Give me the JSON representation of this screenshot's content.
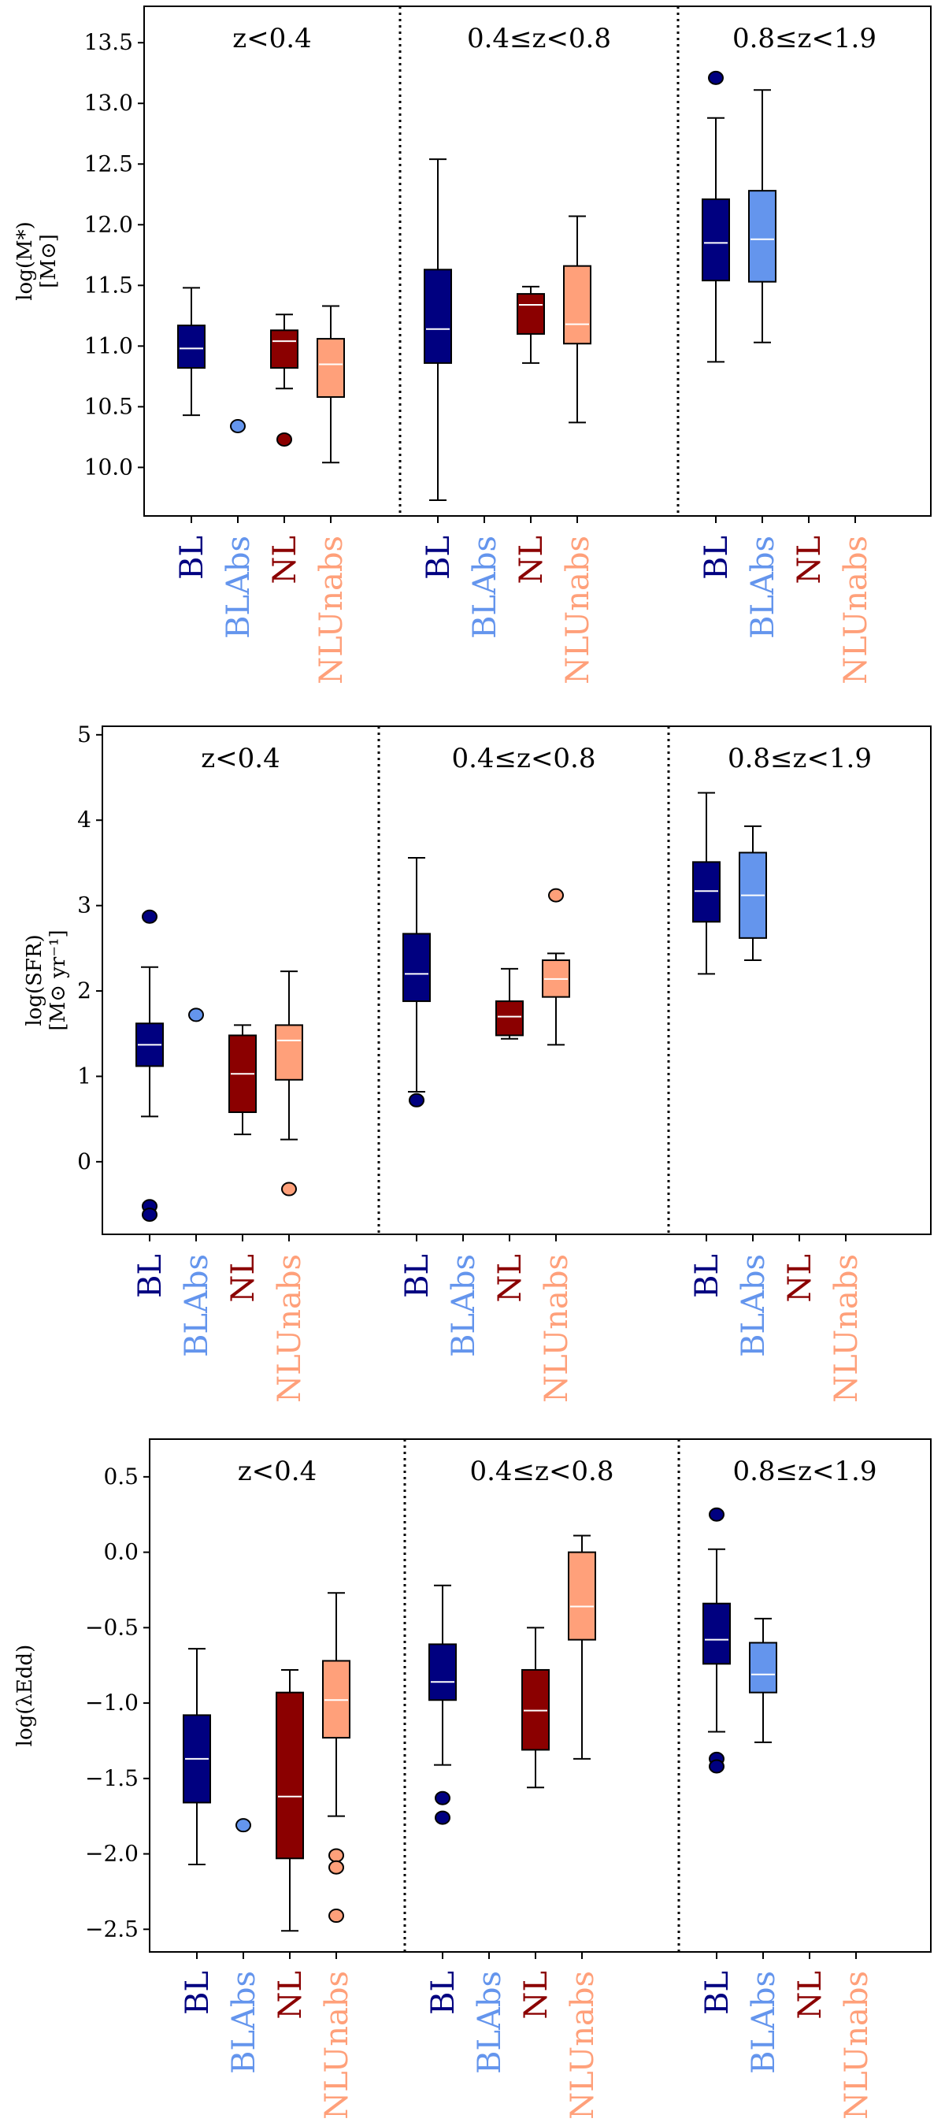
{
  "colors": {
    "BL": "#000080",
    "BLAbs": "#6495ED",
    "NL": "#8B0000",
    "NLUnabs": "#FFA07A"
  },
  "chart_data": [
    {
      "type": "box",
      "ylabel_line1": "log(M*)",
      "ylabel_line2": "[M⊙]",
      "ylim": [
        9.6,
        13.8
      ],
      "yticks": [
        10.0,
        10.5,
        11.0,
        11.5,
        12.0,
        12.5,
        13.0,
        13.5
      ],
      "ytick_labels": [
        "10.0",
        "10.5",
        "11.0",
        "11.5",
        "12.0",
        "12.5",
        "13.0",
        "13.5"
      ],
      "grid": false,
      "panels": [
        {
          "label": "z<0.4",
          "boxes": [
            {
              "category": "BL",
              "whislo": 10.43,
              "q1": 10.82,
              "med": 10.98,
              "q3": 11.17,
              "whishi": 11.48,
              "fliers": []
            },
            {
              "category": "BLAbs",
              "whislo": null,
              "q1": null,
              "med": null,
              "q3": null,
              "whishi": null,
              "fliers": [
                10.34
              ]
            },
            {
              "category": "NL",
              "whislo": 10.65,
              "q1": 10.82,
              "med": 11.04,
              "q3": 11.13,
              "whishi": 11.26,
              "fliers": [
                10.23
              ]
            },
            {
              "category": "NLUnabs",
              "whislo": 10.04,
              "q1": 10.58,
              "med": 10.85,
              "q3": 11.06,
              "whishi": 11.33,
              "fliers": []
            }
          ]
        },
        {
          "label": "0.4≤z<0.8",
          "boxes": [
            {
              "category": "BL",
              "whislo": 9.73,
              "q1": 10.86,
              "med": 11.14,
              "q3": 11.63,
              "whishi": 12.54,
              "fliers": []
            },
            {
              "category": "BLAbs",
              "whislo": null,
              "q1": null,
              "med": null,
              "q3": null,
              "whishi": null,
              "fliers": []
            },
            {
              "category": "NL",
              "whislo": 10.86,
              "q1": 11.1,
              "med": 11.34,
              "q3": 11.43,
              "whishi": 11.49,
              "fliers": []
            },
            {
              "category": "NLUnabs",
              "whislo": 10.37,
              "q1": 11.02,
              "med": 11.18,
              "q3": 11.66,
              "whishi": 12.07,
              "fliers": []
            }
          ]
        },
        {
          "label": "0.8≤z<1.9",
          "boxes": [
            {
              "category": "BL",
              "whislo": 10.87,
              "q1": 11.54,
              "med": 11.85,
              "q3": 12.21,
              "whishi": 12.88,
              "fliers": [
                13.21
              ]
            },
            {
              "category": "BLAbs",
              "whislo": 11.03,
              "q1": 11.53,
              "med": 11.88,
              "q3": 12.28,
              "whishi": 13.11,
              "fliers": []
            },
            {
              "category": "NL",
              "whislo": null,
              "q1": null,
              "med": null,
              "q3": null,
              "whishi": null,
              "fliers": []
            },
            {
              "category": "NLUnabs",
              "whislo": null,
              "q1": null,
              "med": null,
              "q3": null,
              "whishi": null,
              "fliers": []
            }
          ]
        }
      ]
    },
    {
      "type": "box",
      "ylabel_line1": "log(SFR)",
      "ylabel_line2": "[M⊙ yr⁻¹]",
      "ylim": [
        -0.85,
        5.1
      ],
      "yticks": [
        0,
        1,
        2,
        3,
        4,
        5
      ],
      "ytick_labels": [
        "0",
        "1",
        "2",
        "3",
        "4",
        "5"
      ],
      "grid": false,
      "panels": [
        {
          "label": "z<0.4",
          "boxes": [
            {
              "category": "BL",
              "whislo": 0.53,
              "q1": 1.12,
              "med": 1.37,
              "q3": 1.62,
              "whishi": 2.28,
              "fliers": [
                2.87,
                -0.52,
                -0.62
              ]
            },
            {
              "category": "BLAbs",
              "whislo": null,
              "q1": null,
              "med": null,
              "q3": null,
              "whishi": null,
              "fliers": [
                1.72
              ]
            },
            {
              "category": "NL",
              "whislo": 0.32,
              "q1": 0.58,
              "med": 1.03,
              "q3": 1.48,
              "whishi": 1.6,
              "fliers": []
            },
            {
              "category": "NLUnabs",
              "whislo": 0.26,
              "q1": 0.96,
              "med": 1.42,
              "q3": 1.6,
              "whishi": 2.23,
              "fliers": [
                -0.32
              ]
            }
          ]
        },
        {
          "label": "0.4≤z<0.8",
          "boxes": [
            {
              "category": "BL",
              "whislo": 0.82,
              "q1": 1.88,
              "med": 2.2,
              "q3": 2.67,
              "whishi": 3.56,
              "fliers": [
                0.72
              ]
            },
            {
              "category": "BLAbs",
              "whislo": null,
              "q1": null,
              "med": null,
              "q3": null,
              "whishi": null,
              "fliers": []
            },
            {
              "category": "NL",
              "whislo": 1.44,
              "q1": 1.48,
              "med": 1.7,
              "q3": 1.88,
              "whishi": 2.26,
              "fliers": []
            },
            {
              "category": "NLUnabs",
              "whislo": 1.37,
              "q1": 1.93,
              "med": 2.14,
              "q3": 2.36,
              "whishi": 2.44,
              "fliers": [
                3.12
              ]
            }
          ]
        },
        {
          "label": "0.8≤z<1.9",
          "boxes": [
            {
              "category": "BL",
              "whislo": 2.2,
              "q1": 2.81,
              "med": 3.17,
              "q3": 3.51,
              "whishi": 4.32,
              "fliers": []
            },
            {
              "category": "BLAbs",
              "whislo": 2.36,
              "q1": 2.62,
              "med": 3.12,
              "q3": 3.62,
              "whishi": 3.93,
              "fliers": []
            },
            {
              "category": "NL",
              "whislo": null,
              "q1": null,
              "med": null,
              "q3": null,
              "whishi": null,
              "fliers": []
            },
            {
              "category": "NLUnabs",
              "whislo": null,
              "q1": null,
              "med": null,
              "q3": null,
              "whishi": null,
              "fliers": []
            }
          ]
        }
      ]
    },
    {
      "type": "box",
      "ylabel_line1": "log(λEdd)",
      "ylabel_line2": "",
      "ylim": [
        -2.65,
        0.75
      ],
      "yticks": [
        -2.5,
        -2.0,
        -1.5,
        -1.0,
        -0.5,
        0.0,
        0.5
      ],
      "ytick_labels": [
        "−2.5",
        "−2.0",
        "−1.5",
        "−1.0",
        "−0.5",
        "0.0",
        "0.5"
      ],
      "grid": false,
      "panels": [
        {
          "label": "z<0.4",
          "boxes": [
            {
              "category": "BL",
              "whislo": -2.07,
              "q1": -1.66,
              "med": -1.37,
              "q3": -1.08,
              "whishi": -0.64,
              "fliers": []
            },
            {
              "category": "BLAbs",
              "whislo": null,
              "q1": null,
              "med": null,
              "q3": null,
              "whishi": null,
              "fliers": [
                -1.81
              ]
            },
            {
              "category": "NL",
              "whislo": -2.51,
              "q1": -2.03,
              "med": -1.62,
              "q3": -0.93,
              "whishi": -0.78,
              "fliers": []
            },
            {
              "category": "NLUnabs",
              "whislo": -1.75,
              "q1": -1.23,
              "med": -0.98,
              "q3": -0.72,
              "whishi": -0.27,
              "fliers": [
                -2.01,
                -2.09,
                -2.41
              ]
            }
          ]
        },
        {
          "label": "0.4≤z<0.8",
          "boxes": [
            {
              "category": "BL",
              "whislo": -1.41,
              "q1": -0.98,
              "med": -0.86,
              "q3": -0.61,
              "whishi": -0.22,
              "fliers": [
                -1.63,
                -1.76
              ]
            },
            {
              "category": "BLAbs",
              "whislo": null,
              "q1": null,
              "med": null,
              "q3": null,
              "whishi": null,
              "fliers": []
            },
            {
              "category": "NL",
              "whislo": -1.56,
              "q1": -1.31,
              "med": -1.05,
              "q3": -0.78,
              "whishi": -0.5,
              "fliers": []
            },
            {
              "category": "NLUnabs",
              "whislo": -1.37,
              "q1": -0.58,
              "med": -0.36,
              "q3": 0.0,
              "whishi": 0.11,
              "fliers": []
            }
          ]
        },
        {
          "label": "0.8≤z<1.9",
          "boxes": [
            {
              "category": "BL",
              "whislo": -1.19,
              "q1": -0.74,
              "med": -0.58,
              "q3": -0.34,
              "whishi": 0.02,
              "fliers": [
                0.25,
                -1.37,
                -1.42
              ]
            },
            {
              "category": "BLAbs",
              "whislo": -1.26,
              "q1": -0.93,
              "med": -0.81,
              "q3": -0.6,
              "whishi": -0.44,
              "fliers": []
            },
            {
              "category": "NL",
              "whislo": null,
              "q1": null,
              "med": null,
              "q3": null,
              "whishi": null,
              "fliers": []
            },
            {
              "category": "NLUnabs",
              "whislo": null,
              "q1": null,
              "med": null,
              "q3": null,
              "whishi": null,
              "fliers": []
            }
          ]
        }
      ]
    }
  ]
}
